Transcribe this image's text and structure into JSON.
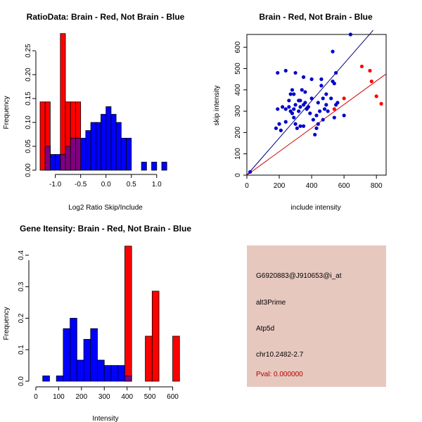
{
  "chart_data": [
    {
      "type": "bar",
      "title": "RatioData: Brain - Red, Not Brain - Blue",
      "xlabel": "Log2 Ratio Skip/Include",
      "ylabel": "Frequency",
      "xlim": [
        -1.3,
        1.35
      ],
      "ylim": [
        0,
        0.29
      ],
      "xticks": [
        "-1.0",
        "-0.5",
        "0.0",
        "0.5",
        "1.0"
      ],
      "xtick_values": [
        -1.0,
        -0.5,
        0.0,
        0.5,
        1.0
      ],
      "yticks": [
        "0.00",
        "0.05",
        "0.10",
        "0.15",
        "0.20",
        "0.25"
      ],
      "ytick_values": [
        0,
        0.05,
        0.1,
        0.15,
        0.2,
        0.25
      ],
      "bin_width": 0.1,
      "series": [
        {
          "name": "Not Brain",
          "color": "#0000ff",
          "bin_starts": [
            -1.2,
            -1.1,
            -1.0,
            -0.9,
            -0.8,
            -0.7,
            -0.6,
            -0.5,
            -0.4,
            -0.3,
            -0.2,
            -0.1,
            0.0,
            0.1,
            0.2,
            0.3,
            0.4,
            0.7,
            0.9,
            1.1
          ],
          "values": [
            0.05,
            0.033,
            0.033,
            0.033,
            0.05,
            0.067,
            0.067,
            0.067,
            0.083,
            0.1,
            0.1,
            0.117,
            0.133,
            0.117,
            0.1,
            0.067,
            0.067,
            0.017,
            0.017,
            0.017
          ]
        },
        {
          "name": "Brain",
          "color": "#ff0000",
          "bin_starts": [
            -1.3,
            -1.2,
            -1.1,
            -1.0,
            -0.9,
            -0.8,
            -0.7,
            -0.6
          ],
          "values": [
            0.143,
            0.143,
            0.0,
            0.0,
            0.286,
            0.143,
            0.143,
            0.143
          ]
        }
      ]
    },
    {
      "type": "scatter",
      "title": "Brain - Red, Not Brain - Blue",
      "xlabel": "include intensity",
      "ylabel": "skip intensity",
      "xlim": [
        0,
        860
      ],
      "ylim": [
        0,
        660
      ],
      "xticks": [
        "0",
        "200",
        "400",
        "600",
        "800"
      ],
      "xtick_values": [
        0,
        200,
        400,
        600,
        800
      ],
      "yticks": [
        "0",
        "100",
        "200",
        "300",
        "400",
        "500",
        "600"
      ],
      "ytick_values": [
        0,
        100,
        200,
        300,
        400,
        500,
        600
      ],
      "series": [
        {
          "name": "Not Brain",
          "color": "#0000cc",
          "points": [
            [
              20,
              15
            ],
            [
              180,
              220
            ],
            [
              190,
              310
            ],
            [
              190,
              480
            ],
            [
              200,
              240
            ],
            [
              210,
              210
            ],
            [
              220,
              320
            ],
            [
              240,
              490
            ],
            [
              240,
              250
            ],
            [
              240,
              310
            ],
            [
              260,
              320
            ],
            [
              260,
              350
            ],
            [
              270,
              300
            ],
            [
              270,
              380
            ],
            [
              280,
              290
            ],
            [
              280,
              400
            ],
            [
              290,
              270
            ],
            [
              290,
              310
            ],
            [
              290,
              380
            ],
            [
              300,
              330
            ],
            [
              300,
              480
            ],
            [
              300,
              240
            ],
            [
              310,
              220
            ],
            [
              320,
              300
            ],
            [
              320,
              350
            ],
            [
              330,
              230
            ],
            [
              330,
              320
            ],
            [
              330,
              350
            ],
            [
              340,
              400
            ],
            [
              350,
              330
            ],
            [
              350,
              230
            ],
            [
              350,
              460
            ],
            [
              360,
              390
            ],
            [
              360,
              340
            ],
            [
              370,
              310
            ],
            [
              380,
              320
            ],
            [
              390,
              290
            ],
            [
              400,
              450
            ],
            [
              400,
              360
            ],
            [
              410,
              260
            ],
            [
              420,
              190
            ],
            [
              430,
              280
            ],
            [
              430,
              220
            ],
            [
              440,
              340
            ],
            [
              440,
              240
            ],
            [
              450,
              300
            ],
            [
              460,
              450
            ],
            [
              460,
              420
            ],
            [
              470,
              260
            ],
            [
              470,
              360
            ],
            [
              480,
              310
            ],
            [
              490,
              330
            ],
            [
              490,
              380
            ],
            [
              500,
              300
            ],
            [
              520,
              360
            ],
            [
              530,
              440
            ],
            [
              530,
              580
            ],
            [
              540,
              430
            ],
            [
              540,
              270
            ],
            [
              550,
              330
            ],
            [
              550,
              480
            ],
            [
              560,
              340
            ],
            [
              600,
              280
            ],
            [
              640,
              660
            ]
          ],
          "trend": {
            "x": [
              0,
              780
            ],
            "y": [
              0,
              680
            ]
          }
        },
        {
          "name": "Brain",
          "color": "#ff0000",
          "points": [
            [
              710,
              510
            ],
            [
              760,
              490
            ],
            [
              770,
              440
            ],
            [
              800,
              370
            ],
            [
              830,
              335
            ],
            [
              540,
              310
            ],
            [
              600,
              360
            ]
          ],
          "trend": {
            "x": [
              0,
              860
            ],
            "y": [
              0,
              475
            ]
          }
        }
      ]
    },
    {
      "type": "bar",
      "title": "Gene Itensity: Brain - Red, Not Brain - Blue",
      "xlabel": "Intensity",
      "ylabel": "Frequency",
      "xlim": [
        0,
        620
      ],
      "ylim": [
        0,
        0.44
      ],
      "xticks": [
        "0",
        "100",
        "200",
        "300",
        "400",
        "500",
        "600"
      ],
      "xtick_values": [
        0,
        100,
        200,
        300,
        400,
        500,
        600
      ],
      "yticks": [
        "0.0",
        "0.1",
        "0.2",
        "0.3",
        "0.4"
      ],
      "ytick_values": [
        0,
        0.1,
        0.2,
        0.3,
        0.4
      ],
      "bin_width": 30,
      "series": [
        {
          "name": "Not Brain",
          "color": "#0000ff",
          "bin_starts": [
            30,
            90,
            120,
            150,
            180,
            210,
            240,
            270,
            300,
            330,
            360,
            390
          ],
          "values": [
            0.017,
            0.017,
            0.167,
            0.2,
            0.067,
            0.133,
            0.167,
            0.067,
            0.05,
            0.05,
            0.05,
            0.017
          ]
        },
        {
          "name": "Brain",
          "color": "#ff0000",
          "bin_starts": [
            390,
            480,
            510,
            600
          ],
          "values": [
            0.429,
            0.143,
            0.286,
            0.143
          ]
        }
      ]
    }
  ],
  "info": {
    "probe_id": "G6920883@J910653@i_at",
    "event_type": "alt3Prime",
    "gene": "Atp5d",
    "location": "chr10.2482-2.7",
    "pval": "Pval: 0.000000"
  }
}
